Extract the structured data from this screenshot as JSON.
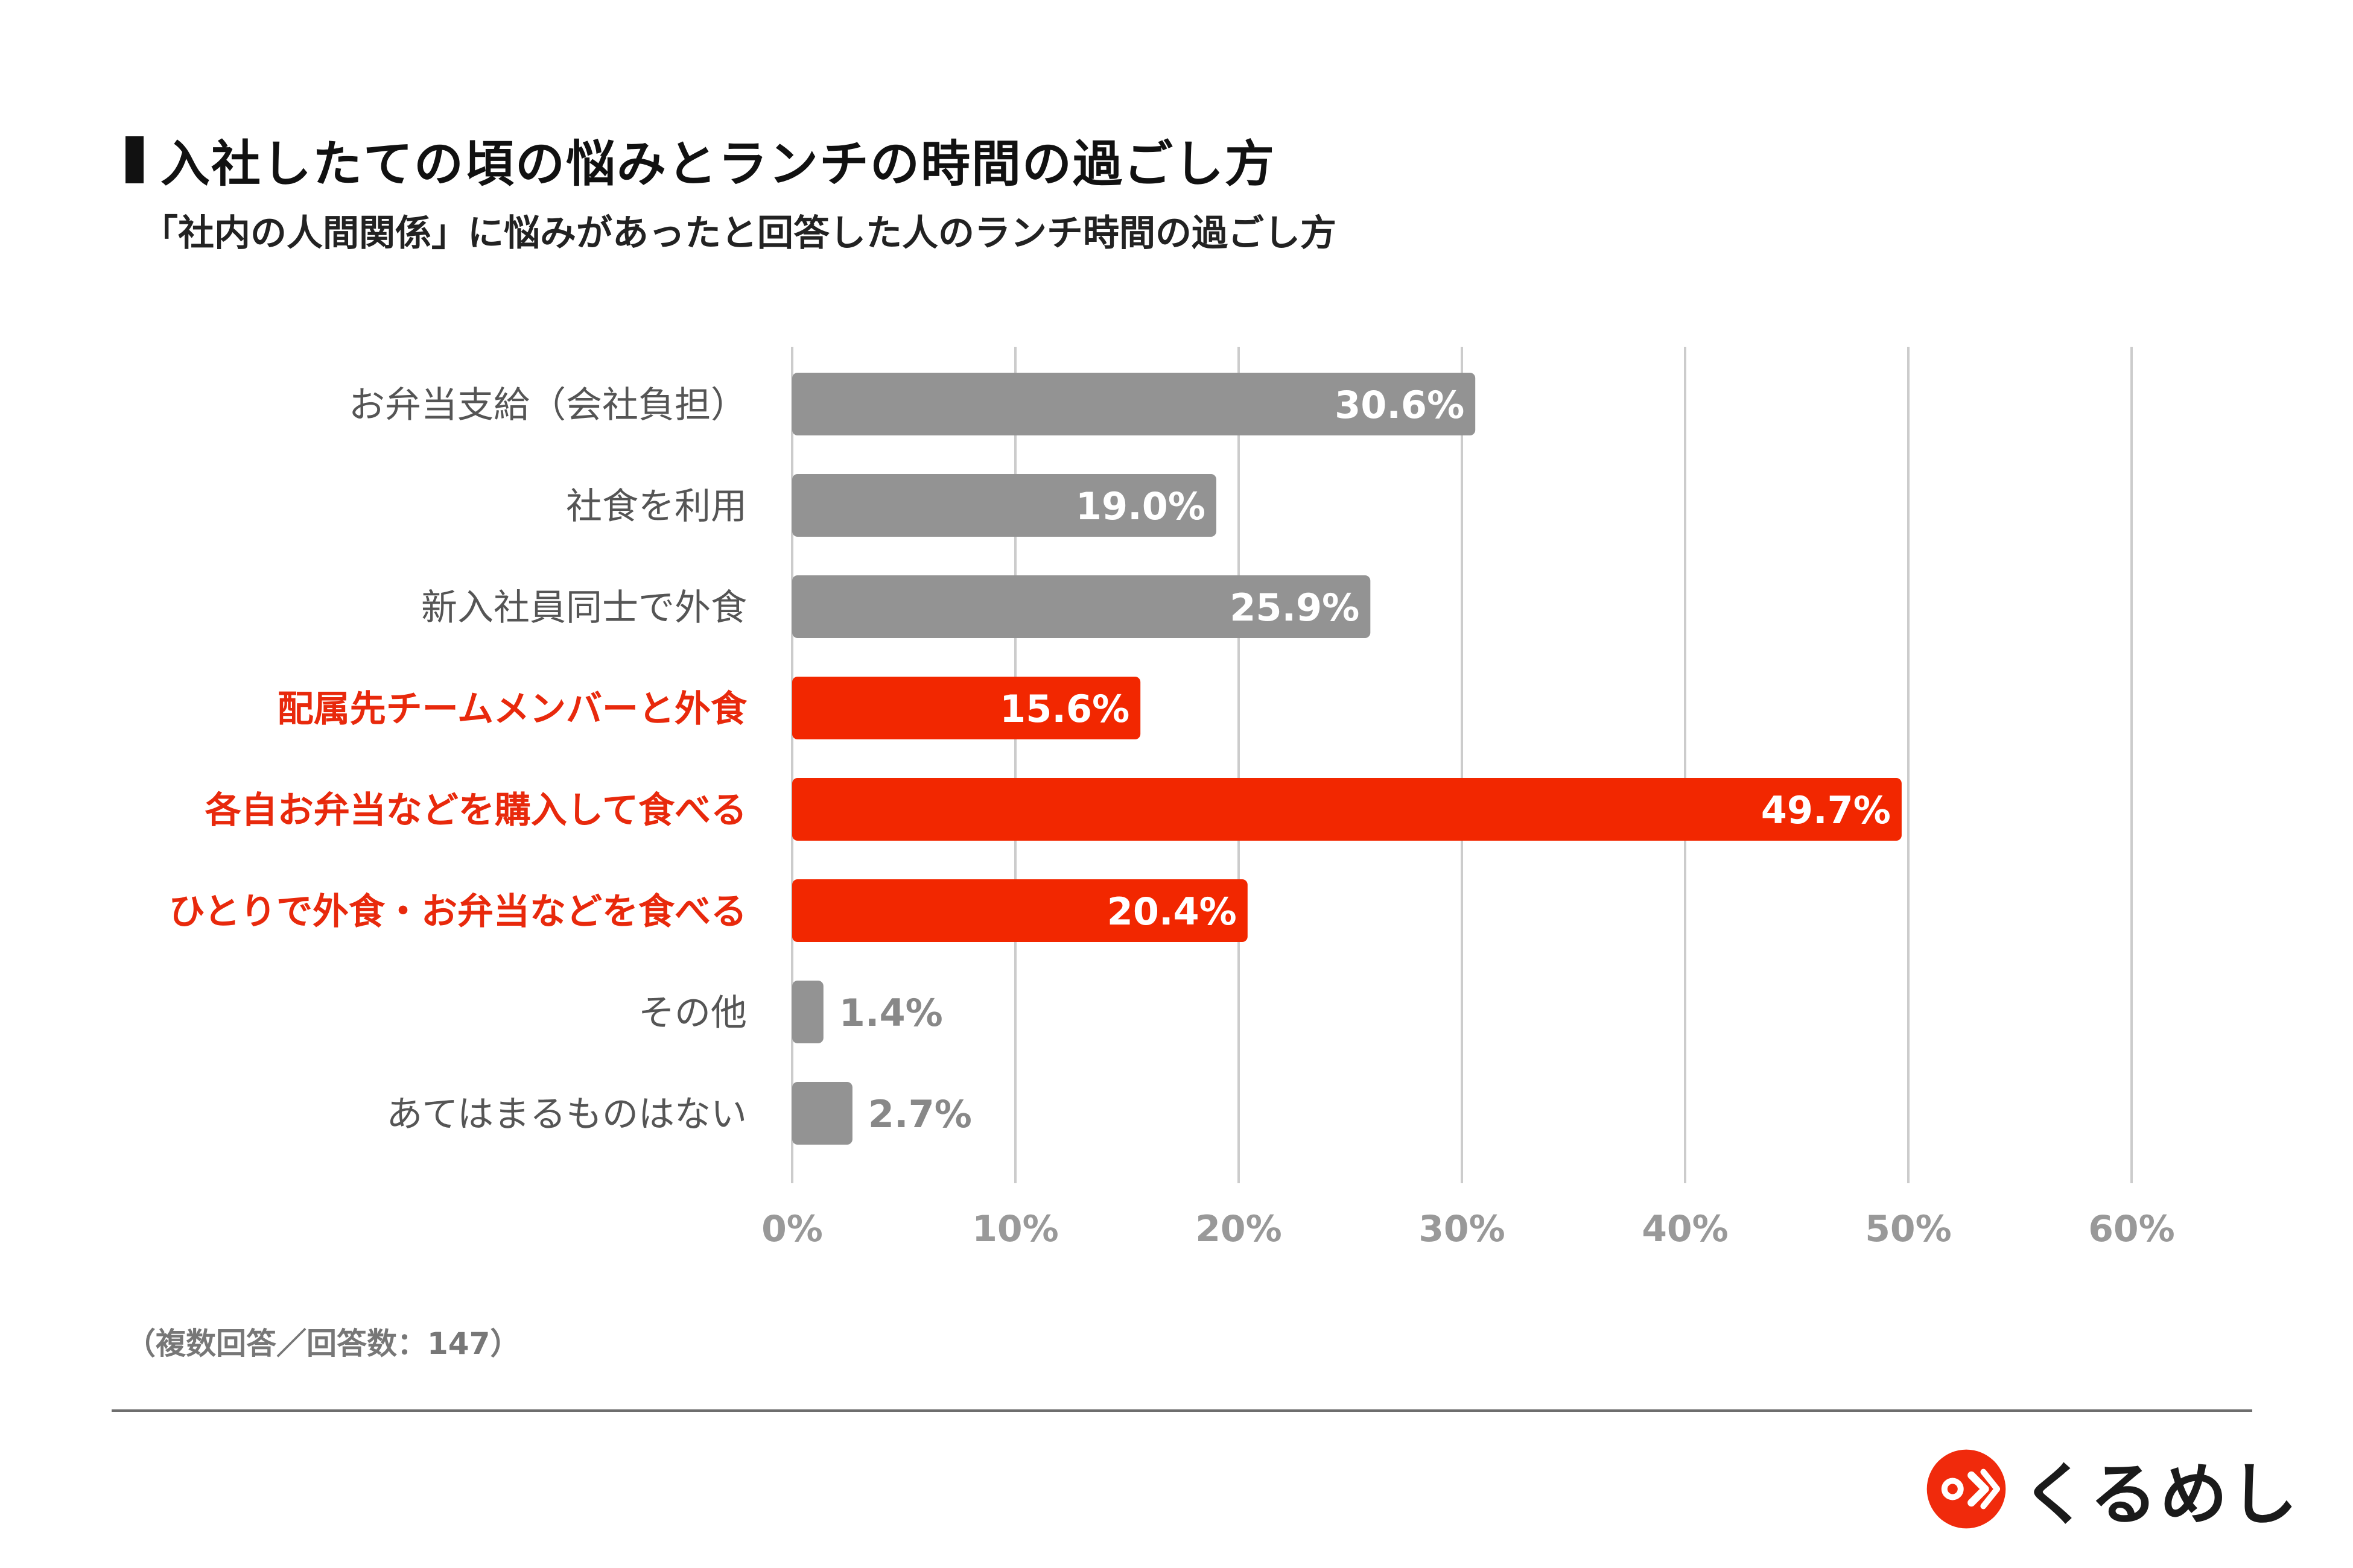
{
  "header": {
    "title": "入社したての頃の悩みとランチの時間の過ごし方",
    "subtitle": "「社内の人間関係」に悩みがあったと回答した人のランチ時間の過ごし方"
  },
  "footnote": "（複数回答／回答数：147）",
  "brand": {
    "name": "くるめし",
    "accent": "#f02a0c"
  },
  "colors": {
    "gray_bar": "#939393",
    "red_bar": "#f22700",
    "red_label": "#e8290c",
    "gray_label": "#555555",
    "grid": "#cccccc",
    "tick": "#999999"
  },
  "chart_data": {
    "type": "bar",
    "orientation": "horizontal",
    "categories": [
      "お弁当支給（会社負担）",
      "社食を利用",
      "新入社員同士で外食",
      "配属先チームメンバーと外食",
      "各自お弁当などを購入して食べる",
      "ひとりで外食・お弁当などを食べる",
      "その他",
      "あてはまるものはない"
    ],
    "values": [
      30.6,
      19.0,
      25.9,
      15.6,
      49.7,
      20.4,
      1.4,
      2.7
    ],
    "value_labels": [
      "30.6%",
      "19.0%",
      "25.9%",
      "15.6%",
      "49.7%",
      "20.4%",
      "1.4%",
      "2.7%"
    ],
    "highlighted": [
      false,
      false,
      false,
      true,
      true,
      true,
      false,
      false
    ],
    "xlim": [
      0,
      60
    ],
    "xticks": [
      0,
      10,
      20,
      30,
      40,
      50,
      60
    ],
    "xtick_labels": [
      "0%",
      "10%",
      "20%",
      "30%",
      "40%",
      "50%",
      "60%"
    ],
    "grid": true
  }
}
